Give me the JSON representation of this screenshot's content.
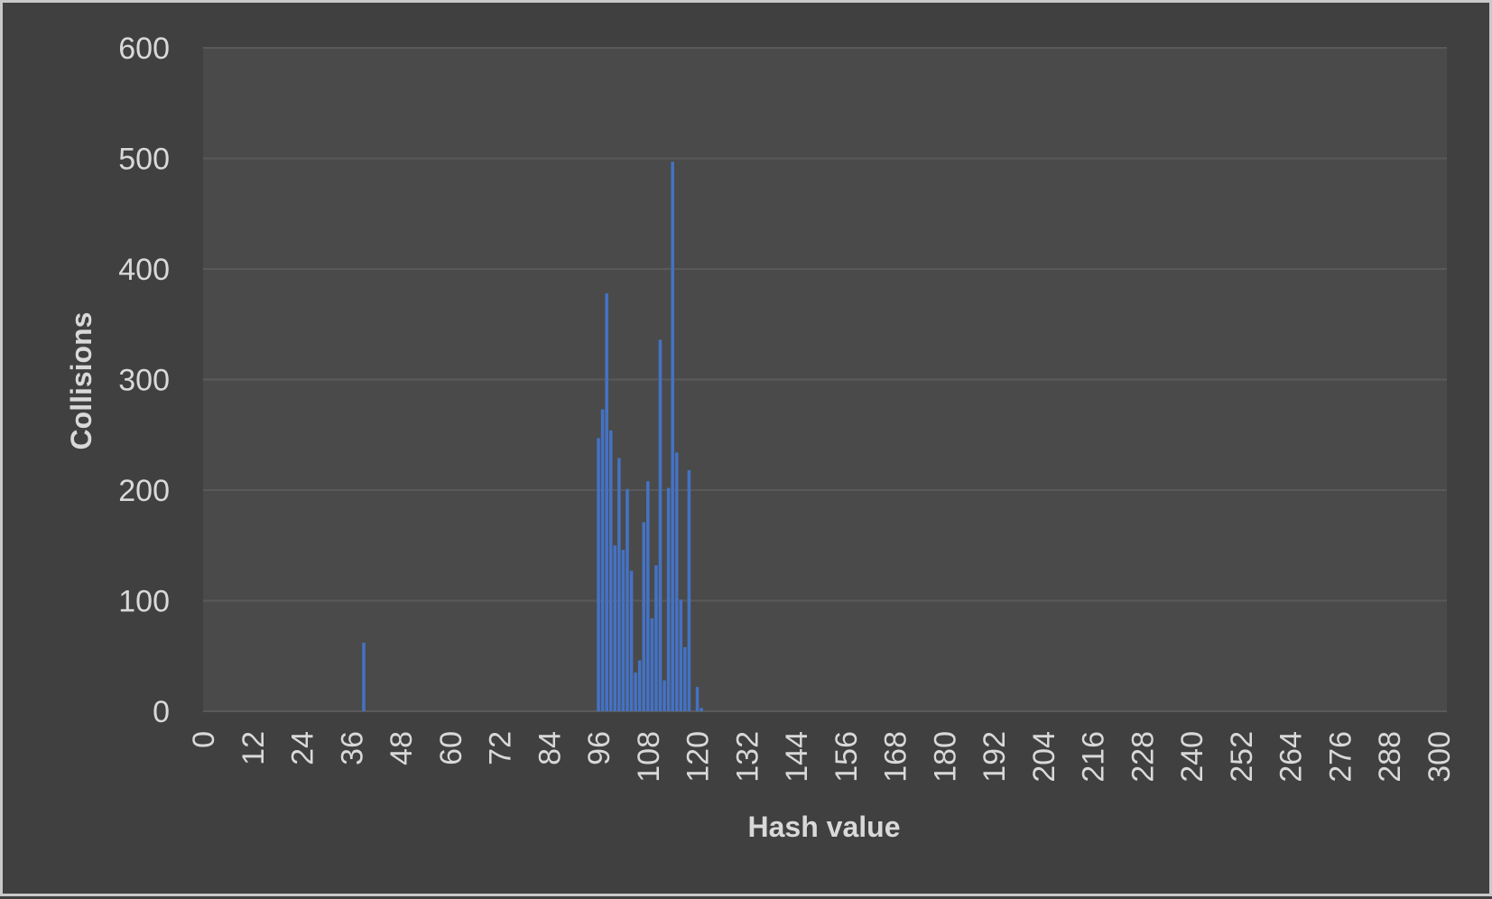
{
  "chart_data": {
    "type": "bar",
    "title": "",
    "xlabel": "Hash value",
    "ylabel": "Collisions",
    "ylim": [
      0,
      600
    ],
    "xlim": [
      0,
      302
    ],
    "yticks": [
      0,
      100,
      200,
      300,
      400,
      500,
      600
    ],
    "xticks": [
      0,
      12,
      24,
      36,
      48,
      60,
      72,
      84,
      96,
      108,
      120,
      132,
      144,
      156,
      168,
      180,
      192,
      204,
      216,
      228,
      240,
      252,
      264,
      276,
      288,
      300
    ],
    "grid": true,
    "legend": "none",
    "colors": {
      "background": "#404040",
      "plot_area": "#4a4a4a",
      "bar": "#4472c4",
      "text": "#d9d9d9",
      "grid": "#595959",
      "border": "#c9c9c9"
    },
    "series": [
      {
        "x": [
          39,
          96,
          97,
          98,
          99,
          100,
          101,
          102,
          103,
          104,
          105,
          106,
          107,
          108,
          109,
          110,
          111,
          112,
          113,
          114,
          115,
          116,
          117,
          118,
          119,
          120,
          121
        ],
        "values": [
          62,
          247,
          273,
          378,
          254,
          150,
          229,
          146,
          201,
          127,
          35,
          46,
          171,
          208,
          84,
          132,
          336,
          28,
          202,
          497,
          234,
          101,
          58,
          218,
          0,
          22,
          3
        ]
      }
    ]
  }
}
